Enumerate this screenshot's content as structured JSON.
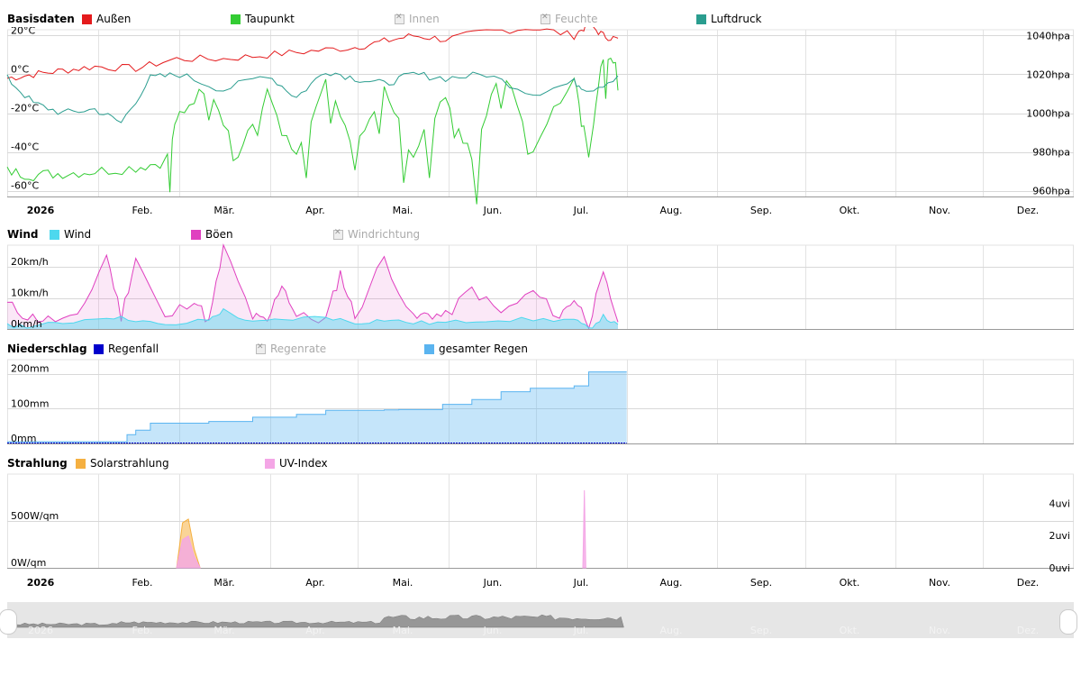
{
  "panels": {
    "basis": {
      "title": "Basisdaten",
      "legend": [
        {
          "label": "Außen",
          "color": "#e41a1c",
          "enabled": true
        },
        {
          "label": "Taupunkt",
          "color": "#33cc33",
          "enabled": true
        },
        {
          "label": "Innen",
          "color": "#cccccc",
          "enabled": false
        },
        {
          "label": "Feuchte",
          "color": "#cccccc",
          "enabled": false
        },
        {
          "label": "Luftdruck",
          "color": "#2a9d8f",
          "enabled": true
        }
      ],
      "left_ticks": [
        "20°C",
        "0°C",
        "-20°C",
        "-40°C",
        "-60°C"
      ],
      "right_ticks": [
        "1040hpa",
        "1020hpa",
        "1000hpa",
        "980hpa",
        "960hpa"
      ]
    },
    "wind": {
      "title": "Wind",
      "legend": [
        {
          "label": "Wind",
          "color": "#4dd8ee",
          "enabled": true
        },
        {
          "label": "Böen",
          "color": "#e040c0",
          "enabled": true
        },
        {
          "label": "Windrichtung",
          "color": "#cccccc",
          "enabled": false
        }
      ],
      "left_ticks": [
        "20km/h",
        "10km/h",
        "0km/h"
      ]
    },
    "rain": {
      "title": "Niederschlag",
      "legend": [
        {
          "label": "Regenfall",
          "color": "#0000cc",
          "enabled": true
        },
        {
          "label": "Regenrate",
          "color": "#cccccc",
          "enabled": false
        },
        {
          "label": "gesamter Regen",
          "color": "#5ab4f0",
          "enabled": true
        }
      ],
      "left_ticks": [
        "200mm",
        "100mm",
        "0mm"
      ]
    },
    "solar": {
      "title": "Strahlung",
      "legend": [
        {
          "label": "Solarstrahlung",
          "color": "#f5b041",
          "enabled": true
        },
        {
          "label": "UV-Index",
          "color": "#f4a6e6",
          "enabled": true
        }
      ],
      "left_ticks": [
        "500W/qm",
        "0W/qm"
      ],
      "right_ticks": [
        "4uvi",
        "2uvi",
        "0uvi"
      ]
    }
  },
  "months": [
    "2026",
    "Feb.",
    "Mär.",
    "Apr.",
    "Mai.",
    "Jun.",
    "Jul.",
    "Aug.",
    "Sep.",
    "Okt.",
    "Nov.",
    "Dez."
  ],
  "chart_data": [
    {
      "type": "line",
      "title": "Basisdaten",
      "x_unit": "day of year 2026",
      "xlim": [
        1,
        365
      ],
      "ylim_left": [
        -60,
        20
      ],
      "ylim_right": [
        960,
        1040
      ],
      "series": [
        {
          "name": "Außen",
          "color": "#e41a1c",
          "axis": "left",
          "x": [
            1,
            10,
            20,
            31,
            45,
            59,
            75,
            90,
            105,
            120,
            130,
            140,
            151,
            165,
            181,
            195,
            200,
            205,
            210
          ],
          "y": [
            -2,
            0,
            2,
            4,
            3,
            8,
            8,
            10,
            12,
            14,
            17,
            20,
            18,
            22,
            24,
            20,
            26,
            20,
            18
          ]
        },
        {
          "name": "Taupunkt",
          "color": "#33cc33",
          "axis": "left",
          "x": [
            1,
            10,
            20,
            31,
            45,
            55,
            60,
            70,
            80,
            90,
            100,
            110,
            120,
            130,
            140,
            151,
            160,
            170,
            181,
            195,
            200,
            205,
            210
          ],
          "y": [
            -50,
            -52,
            -51,
            -50,
            -48,
            -45,
            -20,
            -5,
            -42,
            -10,
            -44,
            -5,
            -40,
            -8,
            -42,
            -10,
            -44,
            5,
            -38,
            0,
            -40,
            10,
            8
          ]
        },
        {
          "name": "Luftdruck",
          "color": "#2a9d8f",
          "axis": "right",
          "x": [
            1,
            10,
            20,
            31,
            40,
            50,
            60,
            75,
            90,
            100,
            110,
            120,
            130,
            140,
            151,
            165,
            181,
            195,
            200,
            210
          ],
          "y": [
            1018,
            1005,
            1000,
            1002,
            995,
            1018,
            1020,
            1012,
            1020,
            1008,
            1022,
            1018,
            1015,
            1020,
            1018,
            1020,
            1010,
            1016,
            1012,
            1018
          ]
        }
      ]
    },
    {
      "type": "area",
      "title": "Wind",
      "x_unit": "day of year 2026",
      "xlim": [
        1,
        365
      ],
      "ylim": [
        0,
        27
      ],
      "series": [
        {
          "name": "Böen",
          "color": "#e040c0",
          "x": [
            1,
            8,
            15,
            25,
            35,
            40,
            45,
            55,
            65,
            70,
            75,
            85,
            90,
            95,
            100,
            110,
            115,
            120,
            130,
            140,
            145,
            151,
            160,
            170,
            181,
            190,
            195,
            200,
            205,
            210
          ],
          "y": [
            8,
            4,
            3,
            3,
            24,
            4,
            23,
            3,
            10,
            2,
            26,
            4,
            2,
            15,
            4,
            3,
            18,
            4,
            23,
            3,
            5,
            4,
            13,
            5,
            12,
            4,
            10,
            2,
            17,
            3
          ]
        },
        {
          "name": "Wind",
          "color": "#4dd8ee",
          "x": [
            1,
            10,
            20,
            35,
            45,
            55,
            70,
            75,
            85,
            95,
            110,
            120,
            130,
            140,
            151,
            165,
            181,
            195,
            200,
            205,
            210
          ],
          "y": [
            1,
            1,
            2,
            4,
            3,
            1,
            3,
            6,
            2,
            3,
            4,
            2,
            3,
            2,
            2,
            3,
            3,
            3,
            0,
            4,
            1
          ]
        }
      ]
    },
    {
      "type": "area",
      "title": "Niederschlag",
      "x_unit": "day of year 2026",
      "xlim": [
        1,
        365
      ],
      "ylim": [
        0,
        240
      ],
      "series": [
        {
          "name": "gesamter Regen",
          "color": "#5ab4f0",
          "x": [
            1,
            38,
            42,
            45,
            50,
            70,
            85,
            100,
            110,
            130,
            135,
            150,
            160,
            170,
            180,
            195,
            200,
            213
          ],
          "y": [
            5,
            5,
            25,
            38,
            58,
            63,
            75,
            83,
            95,
            96,
            97,
            112,
            126,
            148,
            158,
            165,
            205,
            205
          ]
        },
        {
          "name": "Regenfall",
          "color": "#0000cc",
          "x": [
            1,
            213
          ],
          "y": [
            0,
            0
          ]
        }
      ]
    },
    {
      "type": "area",
      "title": "Strahlung",
      "x_unit": "day of year 2026",
      "xlim": [
        1,
        365
      ],
      "ylim_left": [
        0,
        1000
      ],
      "ylim_right": [
        0,
        5.8
      ],
      "series": [
        {
          "name": "Solarstrahlung",
          "color": "#f5b041",
          "axis": "left",
          "x": [
            59,
            61,
            63,
            65,
            67
          ],
          "y": [
            0,
            480,
            520,
            200,
            0
          ]
        },
        {
          "name": "UV-Index",
          "color": "#f4a6e6",
          "axis": "left",
          "x": [
            59,
            61,
            63,
            65,
            67
          ],
          "y": [
            0,
            300,
            340,
            120,
            0
          ]
        },
        {
          "name": "UV-Index",
          "color": "#f4a6e6",
          "axis": "right",
          "x": [
            198,
            198.5,
            199
          ],
          "y": [
            0,
            4.8,
            0
          ]
        }
      ]
    }
  ]
}
